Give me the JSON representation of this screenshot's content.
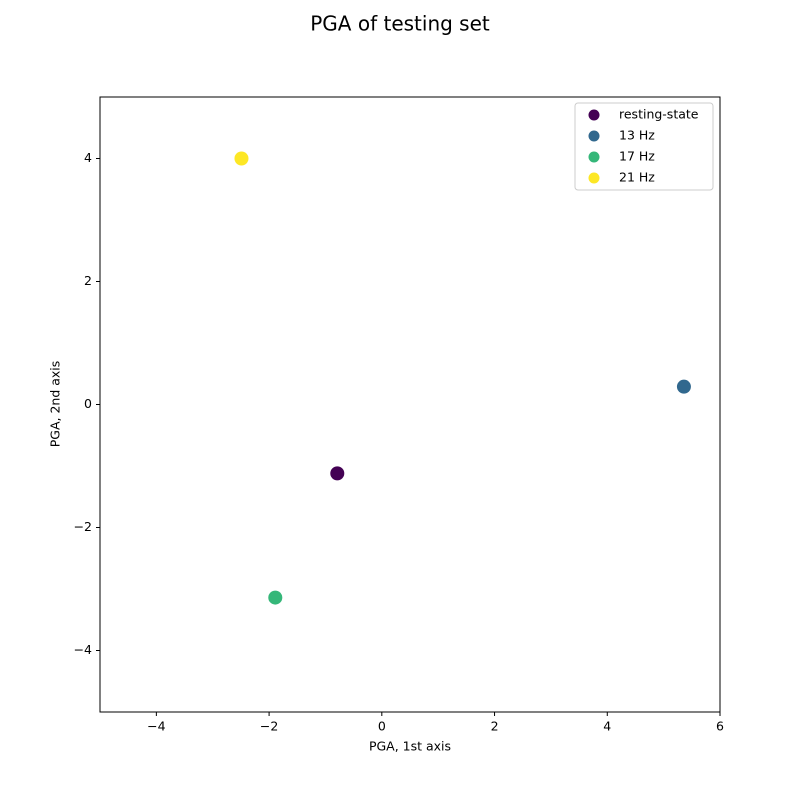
{
  "chart_data": {
    "type": "scatter",
    "title": "PGA of testing set",
    "x_label": "PGA, 1st axis",
    "y_label": "PGA, 2nd axis",
    "series": [
      {
        "name": "resting-state",
        "color": "#440154",
        "x": [
          -0.79
        ],
        "values": [
          -1.12
        ]
      },
      {
        "name": "13 Hz",
        "color": "#31688e",
        "x": [
          5.36
        ],
        "values": [
          0.29
        ]
      },
      {
        "name": "17 Hz",
        "color": "#35b779",
        "x": [
          -1.89
        ],
        "values": [
          -3.14
        ]
      },
      {
        "name": "21 Hz",
        "color": "#fde725",
        "x": [
          -2.49
        ],
        "values": [
          4.0
        ]
      }
    ],
    "xlim": [
      -5,
      6
    ],
    "ylim": [
      -5,
      5
    ],
    "xticks": [
      {
        "value": -4,
        "label": "−4"
      },
      {
        "value": -2,
        "label": "−2"
      },
      0,
      2,
      4,
      6
    ],
    "yticks": [
      {
        "value": -4,
        "label": "−4"
      },
      {
        "value": -2,
        "label": "−2"
      },
      0,
      2,
      4
    ],
    "legend": "upper right",
    "grid": false
  }
}
